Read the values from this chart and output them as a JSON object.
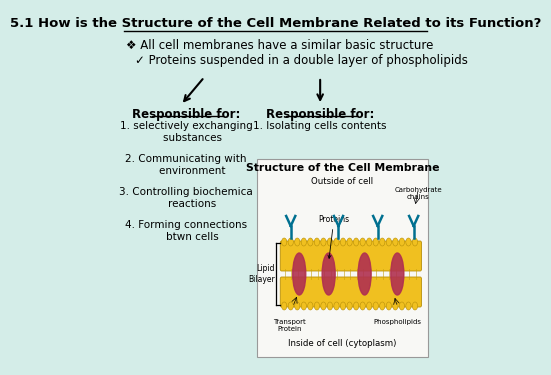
{
  "background_color": "#d4ede8",
  "title": "5.1 How is the Structure of the Cell Membrane Related to its Function?",
  "title_fontsize": 9.5,
  "bullet1": "❖ All cell membranes have a similar basic structure",
  "bullet2": "✓ Proteins suspended in a double layer of phospholipids",
  "left_header": "Responsible for:",
  "left_items": [
    "1. selectively exchanging\n    substances",
    "2. Communicating with\n    environment",
    "3. Controlling biochemica\n    reactions",
    "4. Forming connections\n    btwn cells"
  ],
  "right_header": "Responsible for:",
  "right_items": [
    "1. Isolating cells contents"
  ],
  "diagram_title": "Structure of the Cell Membrane",
  "diagram_label_outside": "Outside of cell",
  "diagram_label_inside": "Inside of cell (cytoplasm)",
  "diagram_label_lipid": "Lipid\nBilayer",
  "diagram_label_proteins": "Proteins",
  "diagram_label_transport": "Transport\nProtein",
  "diagram_label_phospholipids": "Phospholipids",
  "diagram_label_carbohydrate": "Carbohydrate\nchains",
  "text_color": "#000000",
  "arrow_color": "#000000"
}
